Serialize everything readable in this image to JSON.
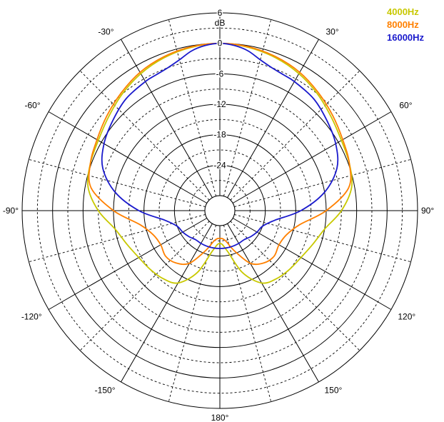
{
  "chart_data": {
    "type": "polar",
    "title": "",
    "radial_unit": "dB",
    "radial_range": [
      -30,
      6
    ],
    "radial_ticks": [
      6,
      0,
      -6,
      -12,
      -18,
      -24
    ],
    "angle_ticks": [
      {
        "angle": 0,
        "label": ""
      },
      {
        "angle": 30,
        "label": "30°"
      },
      {
        "angle": 60,
        "label": "60°"
      },
      {
        "angle": 90,
        "label": "90°"
      },
      {
        "angle": 120,
        "label": "120°"
      },
      {
        "angle": 150,
        "label": "150°"
      },
      {
        "angle": 180,
        "label": "180°"
      },
      {
        "angle": -150,
        "label": "-150°"
      },
      {
        "angle": -120,
        "label": "-120°"
      },
      {
        "angle": -90,
        "label": "-90°"
      },
      {
        "angle": -60,
        "label": "-60°"
      },
      {
        "angle": -30,
        "label": "-30°"
      }
    ],
    "legend_position": "top-right",
    "series": [
      {
        "name": "4000Hz",
        "color": "#c8c800",
        "points": [
          [
            0,
            0
          ],
          [
            10,
            -0.3
          ],
          [
            20,
            -0.9
          ],
          [
            30,
            -1.8
          ],
          [
            40,
            -3.0
          ],
          [
            50,
            -4.3
          ],
          [
            60,
            -5.3
          ],
          [
            70,
            -5.8
          ],
          [
            80,
            -6.6
          ],
          [
            90,
            -9.0
          ],
          [
            100,
            -12.0
          ],
          [
            110,
            -13.5
          ],
          [
            120,
            -14.5
          ],
          [
            130,
            -15.0
          ],
          [
            140,
            -15.5
          ],
          [
            150,
            -16.5
          ],
          [
            160,
            -20.0
          ],
          [
            170,
            -25.0
          ],
          [
            180,
            -26.5
          ],
          [
            -170,
            -25.0
          ],
          [
            -160,
            -20.0
          ],
          [
            -150,
            -16.5
          ],
          [
            -140,
            -15.5
          ],
          [
            -130,
            -15.0
          ],
          [
            -120,
            -14.5
          ],
          [
            -110,
            -13.5
          ],
          [
            -100,
            -12.0
          ],
          [
            -90,
            -9.0
          ],
          [
            -80,
            -6.6
          ],
          [
            -70,
            -5.8
          ],
          [
            -60,
            -5.3
          ],
          [
            -50,
            -4.3
          ],
          [
            -40,
            -3.0
          ],
          [
            -30,
            -1.8
          ],
          [
            -20,
            -0.9
          ],
          [
            -10,
            -0.3
          ]
        ]
      },
      {
        "name": "8000Hz",
        "color": "#ff8000",
        "points": [
          [
            0,
            0
          ],
          [
            10,
            -0.2
          ],
          [
            20,
            -0.7
          ],
          [
            30,
            -1.5
          ],
          [
            40,
            -2.7
          ],
          [
            50,
            -3.9
          ],
          [
            60,
            -5.0
          ],
          [
            70,
            -5.8
          ],
          [
            80,
            -7.2
          ],
          [
            90,
            -12.0
          ],
          [
            100,
            -17.0
          ],
          [
            110,
            -19.0
          ],
          [
            120,
            -19.5
          ],
          [
            130,
            -19.0
          ],
          [
            140,
            -19.5
          ],
          [
            150,
            -21.0
          ],
          [
            160,
            -24.5
          ],
          [
            170,
            -27.0
          ],
          [
            180,
            -27.5
          ],
          [
            -170,
            -27.0
          ],
          [
            -160,
            -24.5
          ],
          [
            -150,
            -21.0
          ],
          [
            -140,
            -19.5
          ],
          [
            -130,
            -19.0
          ],
          [
            -120,
            -19.5
          ],
          [
            -110,
            -19.0
          ],
          [
            -100,
            -17.0
          ],
          [
            -90,
            -12.0
          ],
          [
            -80,
            -7.2
          ],
          [
            -70,
            -5.8
          ],
          [
            -60,
            -5.0
          ],
          [
            -50,
            -3.9
          ],
          [
            -40,
            -2.7
          ],
          [
            -30,
            -1.5
          ],
          [
            -20,
            -0.7
          ],
          [
            -10,
            -0.2
          ]
        ]
      },
      {
        "name": "16000Hz",
        "color": "#1a1acc",
        "points": [
          [
            0,
            0
          ],
          [
            5,
            -0.3
          ],
          [
            10,
            -1.0
          ],
          [
            15,
            -2.2
          ],
          [
            20,
            -3.0
          ],
          [
            25,
            -3.4
          ],
          [
            30,
            -3.6
          ],
          [
            40,
            -4.2
          ],
          [
            50,
            -5.4
          ],
          [
            60,
            -6.6
          ],
          [
            70,
            -8.4
          ],
          [
            80,
            -12.0
          ],
          [
            90,
            -17.0
          ],
          [
            100,
            -22.0
          ],
          [
            110,
            -24.0
          ],
          [
            120,
            -24.5
          ],
          [
            130,
            -25.0
          ],
          [
            140,
            -25.5
          ],
          [
            150,
            -25.5
          ],
          [
            160,
            -25.5
          ],
          [
            170,
            -25.5
          ],
          [
            180,
            -25.5
          ],
          [
            -170,
            -25.5
          ],
          [
            -160,
            -25.5
          ],
          [
            -150,
            -25.5
          ],
          [
            -140,
            -25.5
          ],
          [
            -130,
            -25.0
          ],
          [
            -120,
            -24.5
          ],
          [
            -110,
            -24.0
          ],
          [
            -100,
            -22.0
          ],
          [
            -90,
            -17.0
          ],
          [
            -80,
            -12.0
          ],
          [
            -70,
            -8.4
          ],
          [
            -60,
            -6.6
          ],
          [
            -50,
            -5.4
          ],
          [
            -40,
            -4.2
          ],
          [
            -30,
            -3.6
          ],
          [
            -25,
            -3.4
          ],
          [
            -20,
            -3.0
          ],
          [
            -15,
            -2.2
          ],
          [
            -10,
            -1.0
          ],
          [
            -5,
            -0.3
          ]
        ]
      }
    ]
  }
}
